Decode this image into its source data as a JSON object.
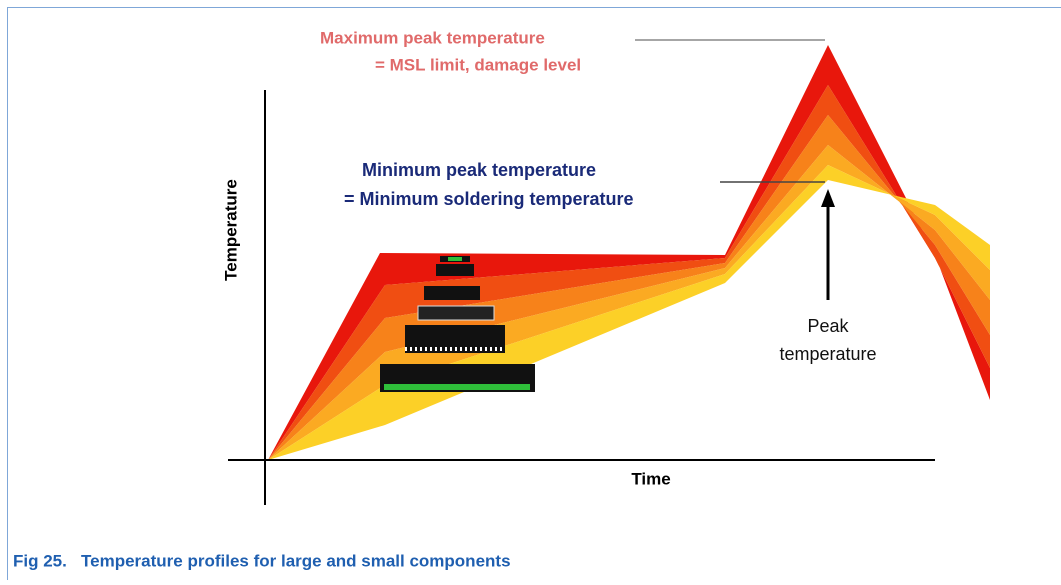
{
  "diagram": {
    "y_axis_label": "Temperature",
    "x_axis_label": "Time",
    "max_peak": {
      "line1": "Maximum peak temperature",
      "line2": "= MSL limit, damage level"
    },
    "min_peak": {
      "line1": "Minimum peak temperature",
      "line2": "= Minimum soldering temperature"
    },
    "peak": {
      "line1": "Peak",
      "line2": "temperature"
    }
  },
  "caption": "Fig 25.   Temperature profiles for large and small components"
}
